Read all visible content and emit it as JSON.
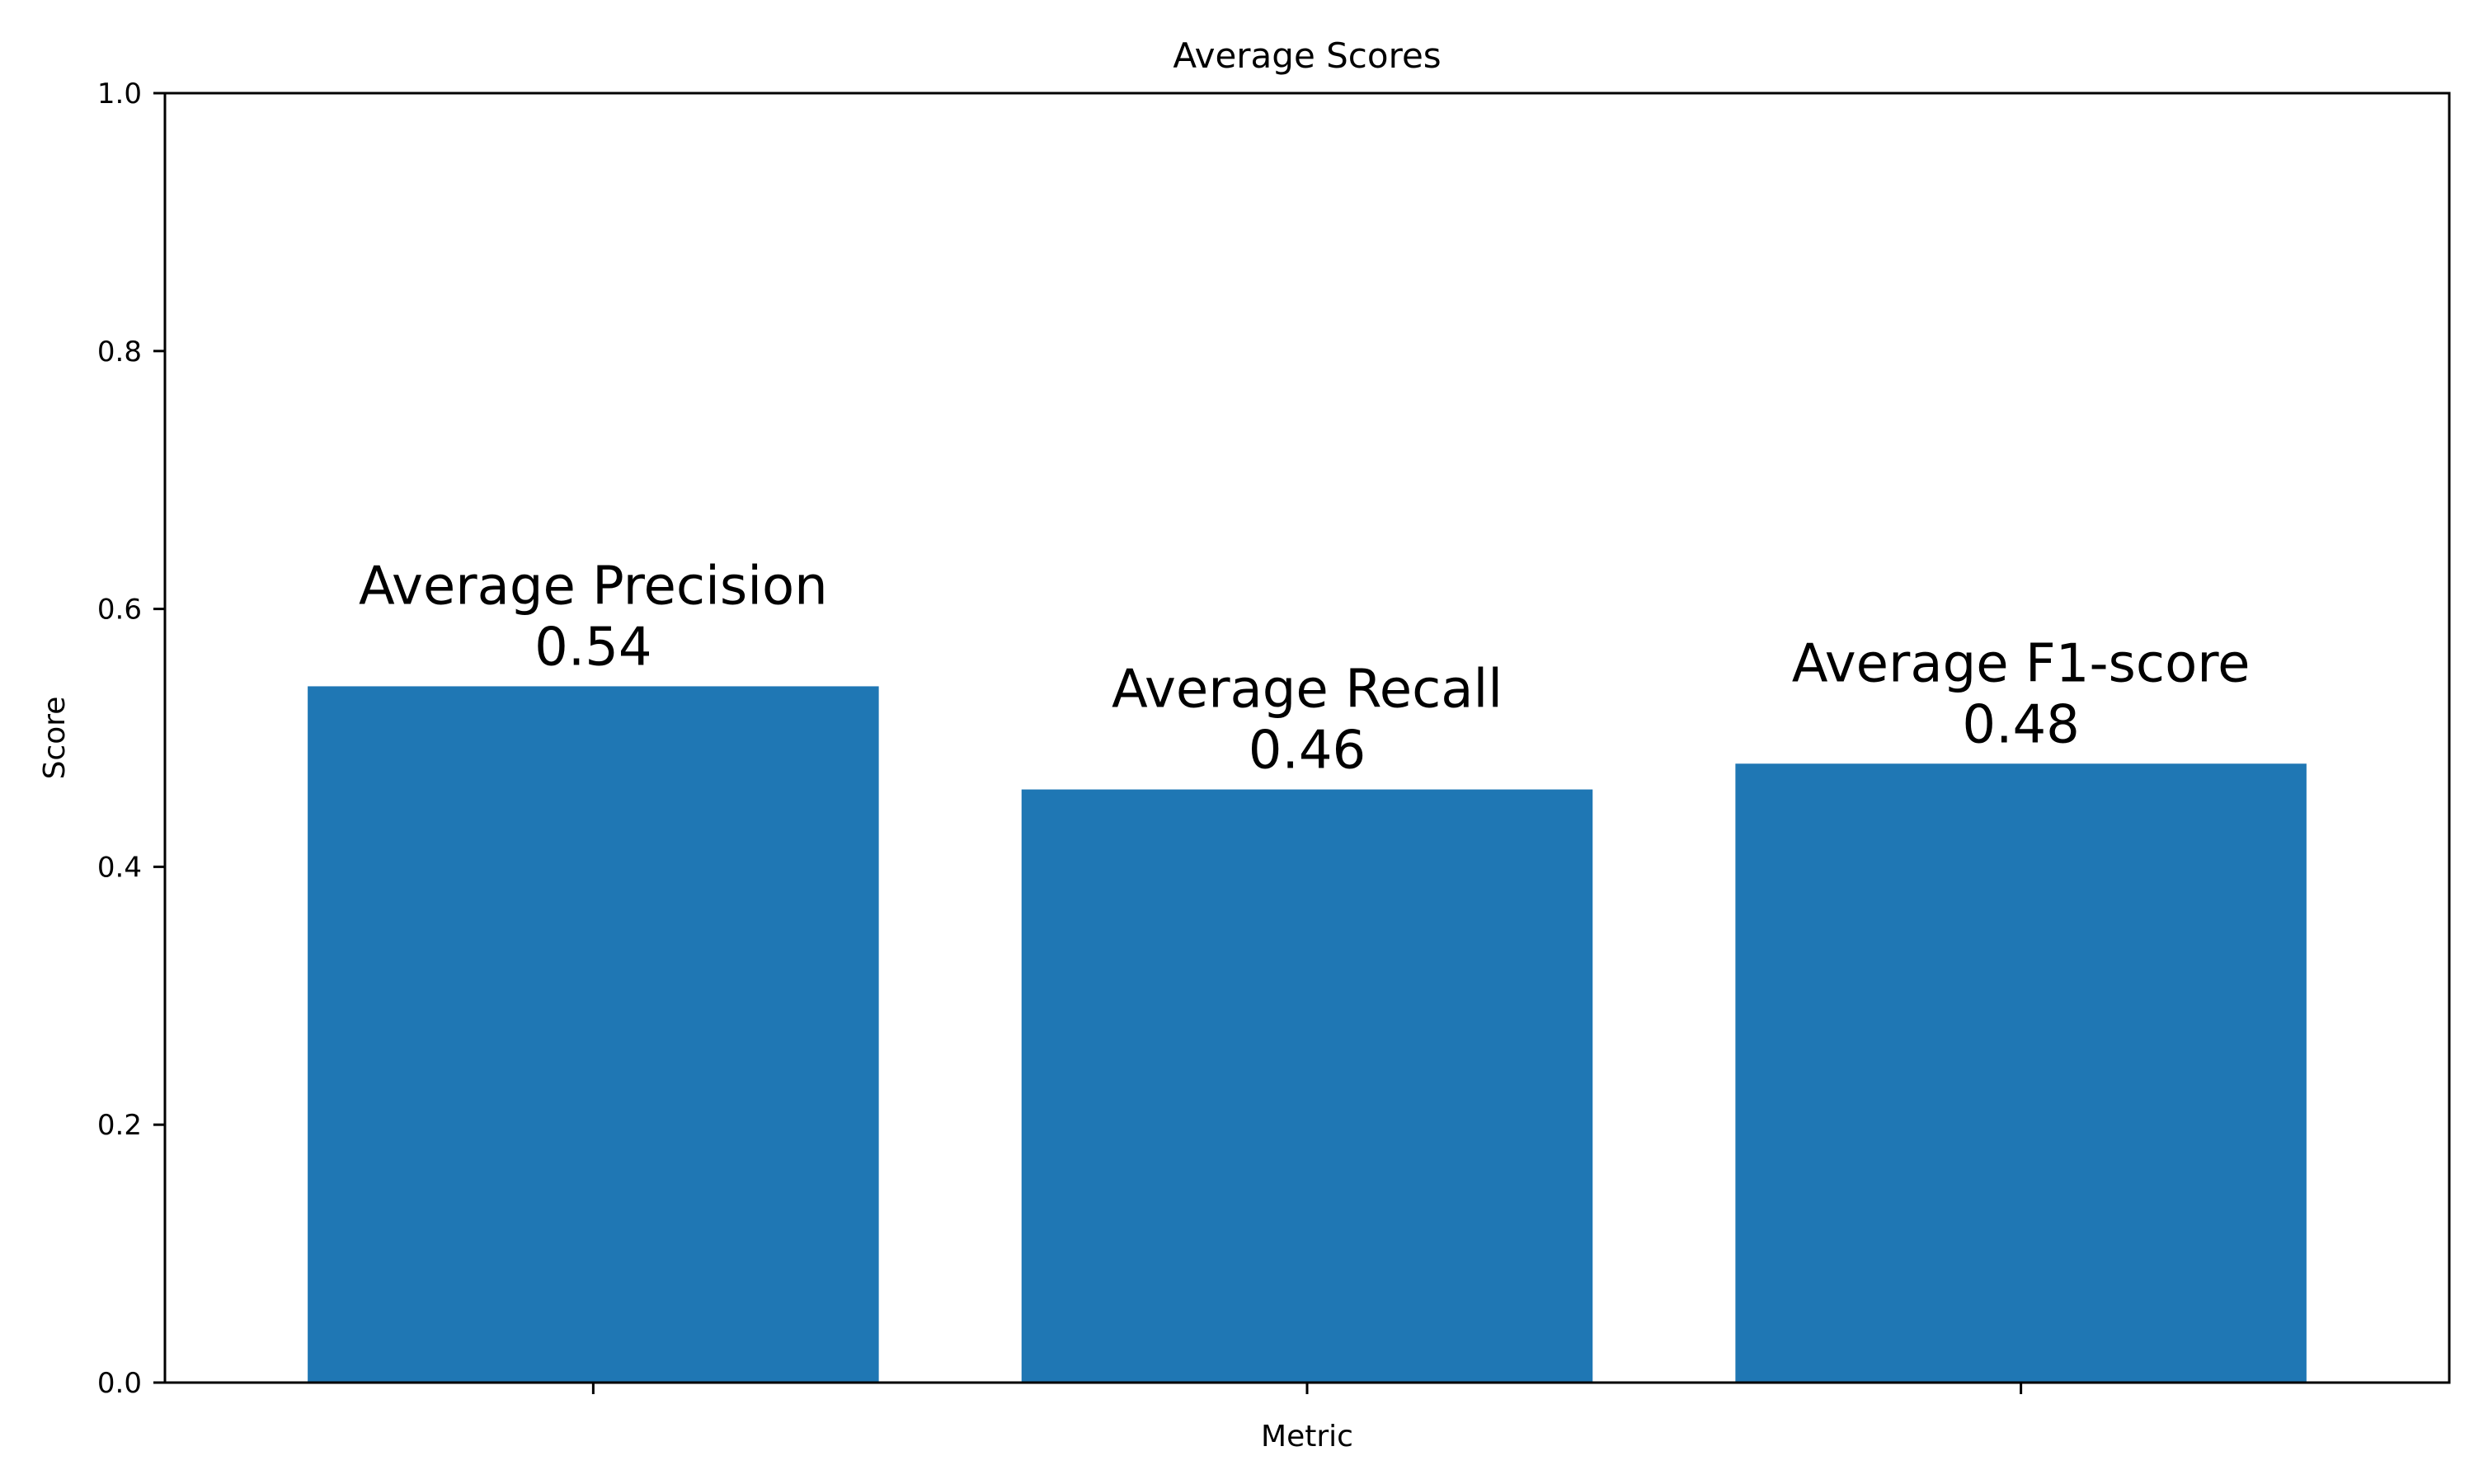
{
  "chart_data": {
    "type": "bar",
    "title": "Average Scores",
    "xlabel": "Metric",
    "ylabel": "Score",
    "ylim": [
      0,
      1.0
    ],
    "yticks": [
      0.0,
      0.2,
      0.4,
      0.6,
      0.8,
      1.0
    ],
    "ytick_labels": [
      "0.0",
      "0.2",
      "0.4",
      "0.6",
      "0.8",
      "1.0"
    ],
    "categories": [
      "Average Precision",
      "Average Recall",
      "Average F1-score"
    ],
    "values": [
      0.54,
      0.46,
      0.48
    ],
    "value_labels": [
      "0.54",
      "0.46",
      "0.48"
    ],
    "x_tick_labels_shown": false,
    "grid": false,
    "legend": "none",
    "colors": {
      "bar": "#1f77b4",
      "axis": "#000000",
      "background": "#ffffff"
    }
  }
}
